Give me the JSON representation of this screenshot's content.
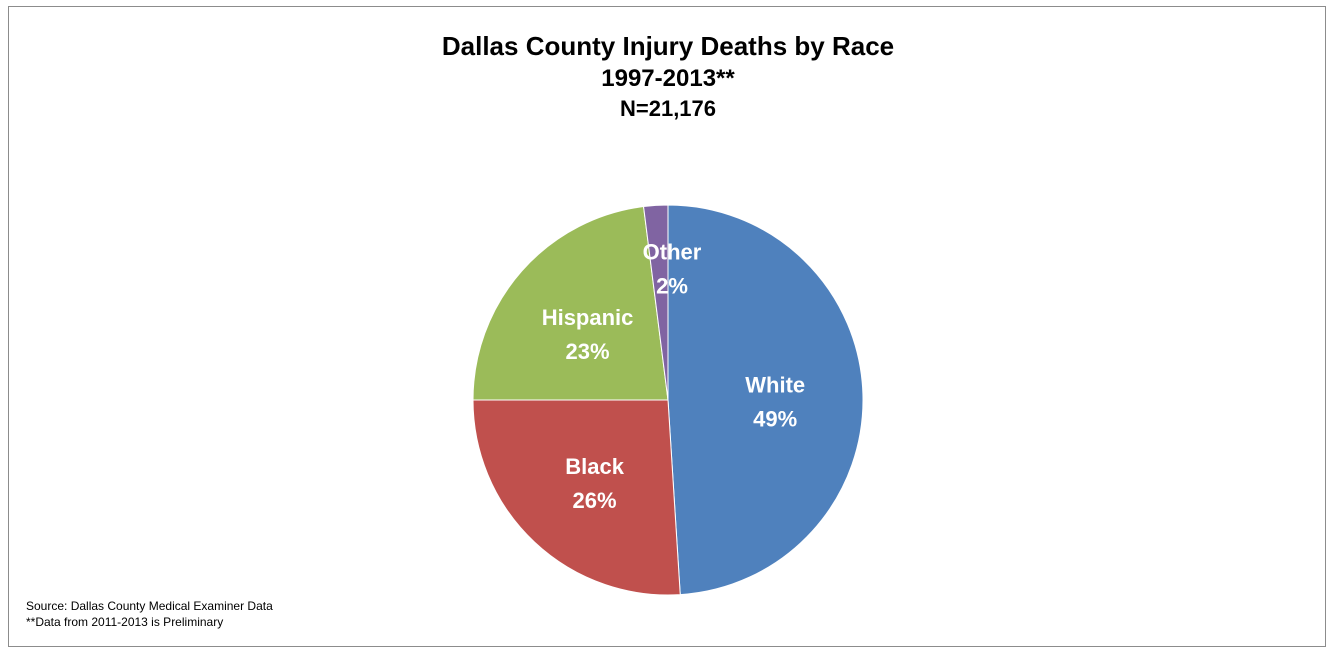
{
  "chart_data": {
    "type": "pie",
    "title": "Dallas County Injury Deaths by Race",
    "subtitle": "1997-2013**",
    "subtitle2": "N=21,176",
    "slices": [
      {
        "label": "White",
        "value": 49,
        "value_label": "49%",
        "color": "#4F81BD"
      },
      {
        "label": "Black",
        "value": 26,
        "value_label": "26%",
        "color": "#C0504D"
      },
      {
        "label": "Hispanic",
        "value": 23,
        "value_label": "23%",
        "color": "#9BBB59"
      },
      {
        "label": "Other",
        "value": 2,
        "value_label": "2%",
        "color": "#8064A2"
      }
    ],
    "legend": "none"
  },
  "footnotes": {
    "source": "Source: Dallas County Medical Examiner Data",
    "note": "**Data from 2011-2013 is Preliminary"
  }
}
